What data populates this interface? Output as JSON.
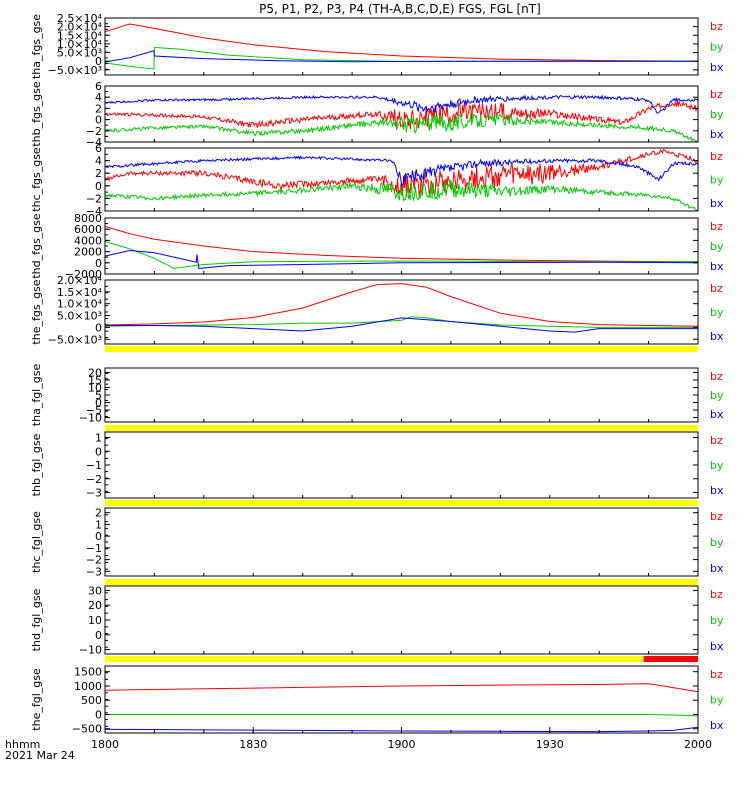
{
  "title": "P5, P1, P2, P3, P4 (TH-A,B,C,D,E) FGS, FGL [nT]",
  "colors": {
    "bx": "#0000ff",
    "by": "#00cc00",
    "bz": "#ff0000",
    "bar": "#ffff00",
    "bar_red": "#ff0000",
    "axis": "#000000"
  },
  "time_axis": {
    "ticks": [
      "1800",
      "1830",
      "1900",
      "1930",
      "2000"
    ],
    "label_line1": "hhmm",
    "label_line2": "2021 Mar 24"
  },
  "chart_data": [
    {
      "type": "line",
      "ylabel": "tha_fgs_gse",
      "ylim": [
        -8000,
        25000
      ],
      "yticks": [
        {
          "v": 25000,
          "t": "2.5×10⁴"
        },
        {
          "v": 20000,
          "t": "2.0×10⁴"
        },
        {
          "v": 15000,
          "t": "1.5×10⁴"
        },
        {
          "v": 10000,
          "t": "1.0×10⁴"
        },
        {
          "v": 5000,
          "t": "5.0×10³"
        },
        {
          "v": 0,
          "t": "0"
        },
        {
          "v": -5000,
          "t": "−5.0×10³"
        }
      ],
      "legend": [
        "bz",
        "by",
        "bx"
      ],
      "series": [
        {
          "name": "bz",
          "x": [
            0,
            5,
            10,
            20,
            30,
            45,
            60,
            80,
            100,
            120
          ],
          "y": [
            17000,
            21500,
            19000,
            13500,
            9500,
            5500,
            3000,
            1200,
            400,
            0
          ]
        },
        {
          "name": "by",
          "x": [
            0,
            5,
            9.9,
            10,
            15,
            25,
            40,
            60,
            80,
            100,
            120
          ],
          "y": [
            -1000,
            -3000,
            -4500,
            8000,
            7000,
            3500,
            800,
            -200,
            0,
            0,
            0
          ]
        },
        {
          "name": "bx",
          "x": [
            0,
            5,
            9.9,
            10,
            20,
            35,
            50,
            70,
            90,
            120
          ],
          "y": [
            -500,
            2000,
            6000,
            3000,
            1500,
            300,
            -300,
            0,
            0,
            0
          ]
        }
      ]
    },
    {
      "type": "line",
      "ylabel": "thb_fgs_gse",
      "ylim": [
        -4,
        6
      ],
      "yticks": [
        {
          "v": 4,
          "t": "4"
        },
        {
          "v": 2,
          "t": "2"
        },
        {
          "v": 0,
          "t": "0"
        },
        {
          "v": -2,
          "t": "−2"
        },
        {
          "v": -4,
          "t": "−4"
        },
        {
          "v": 6,
          "t": "6"
        }
      ],
      "legend": [
        "bz",
        "by",
        "bx"
      ],
      "noisy": true,
      "series": [
        {
          "name": "bz",
          "x": [
            0,
            10,
            20,
            30,
            40,
            55,
            60,
            70,
            80,
            90,
            100,
            105,
            110,
            115,
            120
          ],
          "y": [
            1,
            0.8,
            0.5,
            -1,
            0,
            1,
            0,
            1,
            1.5,
            1,
            0,
            -0.5,
            2,
            3,
            2
          ],
          "jitter": [
            0.3,
            0.3,
            0.3,
            0.5,
            0.5,
            0.5,
            2,
            2,
            1.5,
            0.8,
            0.5,
            0.5,
            0.5,
            0.5,
            0.5
          ]
        },
        {
          "name": "by",
          "x": [
            0,
            10,
            20,
            30,
            40,
            55,
            60,
            70,
            80,
            90,
            100,
            110,
            115,
            120
          ],
          "y": [
            -2,
            -1.5,
            -1.2,
            -2.5,
            -2,
            -0.5,
            -1,
            -0.5,
            0,
            -0.5,
            -1,
            -1.5,
            -2,
            -4
          ],
          "jitter": [
            0.3,
            0.3,
            0.3,
            0.4,
            0.4,
            0.5,
            1.5,
            1.5,
            1,
            0.5,
            0.4,
            0.4,
            0.3,
            0.3
          ]
        },
        {
          "name": "bx",
          "x": [
            0,
            10,
            20,
            40,
            55,
            60,
            65,
            75,
            90,
            100,
            110,
            112,
            115,
            120
          ],
          "y": [
            3,
            3.5,
            3.5,
            4,
            4,
            3,
            2,
            3.5,
            4,
            4,
            3.5,
            1,
            3.5,
            3.5
          ],
          "jitter": [
            0.2,
            0.2,
            0.2,
            0.2,
            0.2,
            0.6,
            1,
            0.6,
            0.3,
            0.3,
            0.3,
            0.3,
            0.3,
            0.2
          ]
        }
      ]
    },
    {
      "type": "line",
      "ylabel": "thc_fgs_gse",
      "ylim": [
        -4,
        6
      ],
      "yticks": [
        {
          "v": 6,
          "t": "6"
        },
        {
          "v": 4,
          "t": "4"
        },
        {
          "v": 2,
          "t": "2"
        },
        {
          "v": 0,
          "t": "0"
        },
        {
          "v": -2,
          "t": "−2"
        },
        {
          "v": -4,
          "t": "−4"
        }
      ],
      "legend": [
        "bz",
        "by",
        "bx"
      ],
      "noisy": true,
      "series": [
        {
          "name": "bz",
          "x": [
            0,
            5,
            20,
            35,
            55,
            60,
            70,
            80,
            90,
            100,
            110,
            113,
            115,
            120
          ],
          "y": [
            1,
            2,
            2,
            0,
            1,
            0,
            1,
            1.5,
            2,
            3,
            5,
            5.5,
            5,
            4
          ],
          "jitter": [
            0.3,
            0.3,
            0.4,
            0.6,
            0.5,
            2,
            2,
            2,
            1.5,
            0.5,
            0.4,
            0.3,
            0.4,
            0.3
          ]
        },
        {
          "name": "by",
          "x": [
            0,
            10,
            20,
            35,
            50,
            60,
            70,
            80,
            90,
            100,
            110,
            115,
            120
          ],
          "y": [
            -1.5,
            -2,
            -1.5,
            -1,
            0,
            -1,
            -0.5,
            -1,
            -0.5,
            -1,
            -1.5,
            -2,
            -4
          ],
          "jitter": [
            0.3,
            0.3,
            0.3,
            0.4,
            0.5,
            1.5,
            1.5,
            1,
            0.6,
            0.4,
            0.3,
            0.3,
            0.3
          ]
        },
        {
          "name": "bx",
          "x": [
            0,
            10,
            20,
            40,
            58,
            60,
            65,
            75,
            90,
            100,
            108,
            112,
            115,
            120
          ],
          "y": [
            3,
            3.5,
            4,
            4.5,
            4,
            1,
            2,
            3.5,
            4,
            4,
            3,
            1,
            3.5,
            3.5
          ],
          "jitter": [
            0.3,
            0.2,
            0.2,
            0.2,
            0.2,
            1,
            1,
            0.6,
            0.3,
            0.3,
            0.3,
            0.3,
            0.3,
            0.2
          ]
        }
      ]
    },
    {
      "type": "line",
      "ylabel": "thd_fgs_gse",
      "ylim": [
        -2000,
        8000
      ],
      "yticks": [
        {
          "v": 8000,
          "t": "8000"
        },
        {
          "v": 6000,
          "t": "6000"
        },
        {
          "v": 4000,
          "t": "4000"
        },
        {
          "v": 2000,
          "t": "2000"
        },
        {
          "v": 0,
          "t": "0"
        },
        {
          "v": -2000,
          "t": "−2000"
        }
      ],
      "legend": [
        "bz",
        "by",
        "bx"
      ],
      "series": [
        {
          "name": "bz",
          "x": [
            0,
            5,
            10,
            20,
            30,
            45,
            60,
            80,
            100,
            120
          ],
          "y": [
            6500,
            5200,
            4200,
            3000,
            2000,
            1300,
            800,
            500,
            300,
            200
          ]
        },
        {
          "name": "by",
          "x": [
            0,
            5,
            10,
            14,
            20,
            30,
            50,
            70,
            90,
            120
          ],
          "y": [
            3800,
            2500,
            800,
            -1000,
            -300,
            200,
            300,
            300,
            200,
            200
          ]
        },
        {
          "name": "bx",
          "x": [
            0,
            5,
            10,
            18.5,
            18.6,
            19,
            25,
            40,
            60,
            80,
            100,
            120
          ],
          "y": [
            1200,
            2200,
            1800,
            100,
            1500,
            -1000,
            -500,
            -300,
            0,
            50,
            100,
            0
          ]
        }
      ]
    },
    {
      "type": "line",
      "ylabel": "the_fgs_gse",
      "ylim": [
        -7000,
        20000
      ],
      "yticks": [
        {
          "v": 20000,
          "t": "2.0×10⁴"
        },
        {
          "v": 15000,
          "t": "1.5×10⁴"
        },
        {
          "v": 10000,
          "t": "1.0×10⁴"
        },
        {
          "v": 5000,
          "t": "5.0×10³"
        },
        {
          "v": 0,
          "t": "0"
        },
        {
          "v": -5000,
          "t": "−5.0×10³"
        }
      ],
      "legend": [
        "bz",
        "by",
        "bx"
      ],
      "series": [
        {
          "name": "bz",
          "x": [
            0,
            10,
            20,
            30,
            40,
            50,
            55,
            60,
            65,
            70,
            80,
            90,
            100,
            110,
            120
          ],
          "y": [
            1000,
            1500,
            2300,
            4200,
            8200,
            15000,
            18000,
            18500,
            17000,
            13000,
            6000,
            2500,
            1200,
            800,
            500
          ]
        },
        {
          "name": "by",
          "x": [
            0,
            10,
            20,
            30,
            40,
            50,
            60,
            62,
            65,
            70,
            80,
            90,
            100,
            110,
            120
          ],
          "y": [
            500,
            800,
            1000,
            1200,
            1800,
            1800,
            3000,
            4500,
            4000,
            2500,
            1000,
            500,
            0,
            0,
            0
          ]
        },
        {
          "name": "bx",
          "x": [
            0,
            10,
            20,
            30,
            40,
            50,
            60,
            70,
            80,
            90,
            95,
            100,
            110,
            120
          ],
          "y": [
            800,
            800,
            500,
            -500,
            -1500,
            500,
            4000,
            2500,
            500,
            -1500,
            -2000,
            -500,
            -500,
            -500
          ]
        }
      ]
    },
    {
      "type": "line",
      "ylabel": "tha_fgl_gse",
      "ylim": [
        -13,
        23
      ],
      "yticks": [
        {
          "v": 20,
          "t": "20"
        },
        {
          "v": 15,
          "t": "15"
        },
        {
          "v": 10,
          "t": "10"
        },
        {
          "v": 5,
          "t": "5"
        },
        {
          "v": 0,
          "t": "0"
        },
        {
          "v": -5,
          "t": "−5"
        },
        {
          "v": -10,
          "t": "−10"
        }
      ],
      "legend": [
        "bz",
        "by",
        "bx"
      ],
      "series": []
    },
    {
      "type": "line",
      "ylabel": "thb_fgl_gse",
      "ylim": [
        -3.4,
        1.4
      ],
      "yticks": [
        {
          "v": 1,
          "t": "1"
        },
        {
          "v": 0,
          "t": "0"
        },
        {
          "v": -1,
          "t": "−1"
        },
        {
          "v": -2,
          "t": "−2"
        },
        {
          "v": -3,
          "t": "−3"
        }
      ],
      "legend": [
        "bz",
        "by",
        "bx"
      ],
      "series": []
    },
    {
      "type": "line",
      "ylabel": "thc_fgl_gse",
      "ylim": [
        -3.4,
        2.4
      ],
      "yticks": [
        {
          "v": 2,
          "t": "2"
        },
        {
          "v": 1,
          "t": "1"
        },
        {
          "v": 0,
          "t": "0"
        },
        {
          "v": -1,
          "t": "−1"
        },
        {
          "v": -2,
          "t": "−2"
        },
        {
          "v": -3,
          "t": "−3"
        }
      ],
      "legend": [
        "bz",
        "by",
        "bx"
      ],
      "series": []
    },
    {
      "type": "line",
      "ylabel": "thd_fgl_gse",
      "ylim": [
        -13,
        33
      ],
      "yticks": [
        {
          "v": 30,
          "t": "30"
        },
        {
          "v": 20,
          "t": "20"
        },
        {
          "v": 10,
          "t": "10"
        },
        {
          "v": 0,
          "t": "0"
        },
        {
          "v": -10,
          "t": "−10"
        }
      ],
      "legend": [
        "bz",
        "by",
        "bx"
      ],
      "series": []
    },
    {
      "type": "line",
      "ylabel": "the_fgl_gse",
      "ylim": [
        -650,
        1700
      ],
      "yticks": [
        {
          "v": 1500,
          "t": "1500"
        },
        {
          "v": 1000,
          "t": "1000"
        },
        {
          "v": 500,
          "t": "500"
        },
        {
          "v": 0,
          "t": "0"
        },
        {
          "v": -500,
          "t": "−500"
        }
      ],
      "legend": [
        "bz",
        "by",
        "bx"
      ],
      "series": [
        {
          "name": "bz",
          "x": [
            0,
            20,
            40,
            60,
            80,
            100,
            110,
            113,
            120
          ],
          "y": [
            850,
            900,
            950,
            1000,
            1030,
            1050,
            1080,
            1000,
            800
          ]
        },
        {
          "name": "by",
          "x": [
            0,
            20,
            40,
            60,
            80,
            100,
            110,
            115,
            120
          ],
          "y": [
            0,
            0,
            0,
            0,
            0,
            0,
            0,
            -20,
            -50
          ]
        },
        {
          "name": "bx",
          "x": [
            0,
            20,
            40,
            60,
            80,
            100,
            110,
            115,
            120
          ],
          "y": [
            -520,
            -540,
            -560,
            -580,
            -590,
            -600,
            -580,
            -560,
            -450
          ]
        }
      ]
    }
  ],
  "mode_bars": [
    {
      "after_panel": 4,
      "segments": [
        {
          "x0": 0,
          "x1": 120,
          "color": "bar"
        }
      ]
    },
    {
      "after_panel": 5,
      "segments": [
        {
          "x0": 0,
          "x1": 120,
          "color": "bar"
        }
      ]
    },
    {
      "after_panel": 6,
      "segments": [
        {
          "x0": 0,
          "x1": 120,
          "color": "bar"
        }
      ]
    },
    {
      "after_panel": 7,
      "segments": [
        {
          "x0": 0,
          "x1": 120,
          "color": "bar"
        }
      ]
    },
    {
      "after_panel": 8,
      "segments": [
        {
          "x0": 0,
          "x1": 109,
          "color": "bar"
        },
        {
          "x0": 109,
          "x1": 120,
          "color": "bar_red"
        }
      ]
    }
  ]
}
